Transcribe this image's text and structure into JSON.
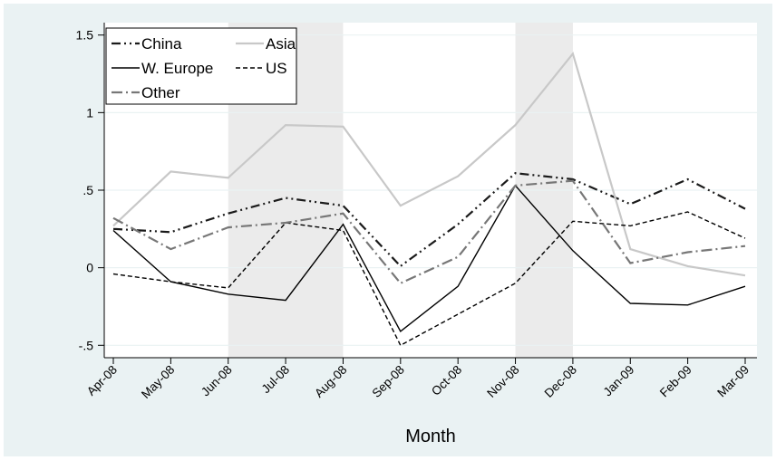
{
  "chart_data": {
    "type": "line",
    "xlabel": "Month",
    "ylabel": "",
    "categories": [
      "Apr-08",
      "May-08",
      "Jun-08",
      "Jul-08",
      "Aug-08",
      "Sep-08",
      "Oct-08",
      "Nov-08",
      "Dec-08",
      "Jan-09",
      "Feb-09",
      "Mar-09"
    ],
    "ylim": [
      -0.58,
      1.58
    ],
    "yticks": [
      -0.5,
      0,
      0.5,
      1,
      1.5
    ],
    "ytick_labels": [
      "-.5",
      "0",
      ".5",
      "1",
      "1.5"
    ],
    "grid": true,
    "legend_position": "top-left",
    "shaded_periods": [
      [
        "Jun-08",
        "Aug-08"
      ],
      [
        "Nov-08",
        "Dec-08"
      ]
    ],
    "colors": {
      "plot_background": "#ffffff",
      "outer_background": "#eaf2f3",
      "shade": "#ebebeb",
      "grid": "#eaf2f3"
    },
    "series": [
      {
        "name": "China",
        "color": "#1a1a1a",
        "dash": "10,4,2,4,2,4",
        "width": 2.2,
        "values": [
          0.25,
          0.23,
          0.35,
          0.45,
          0.4,
          0.01,
          0.28,
          0.61,
          0.57,
          0.41,
          0.57,
          0.38
        ]
      },
      {
        "name": "Asia",
        "color": "#c8c8c8",
        "dash": "",
        "width": 2.2,
        "values": [
          0.27,
          0.62,
          0.58,
          0.92,
          0.91,
          0.4,
          0.59,
          0.92,
          1.38,
          0.12,
          0.01,
          -0.05
        ]
      },
      {
        "name": "W. Europe",
        "color": "#000000",
        "dash": "",
        "width": 1.4,
        "values": [
          0.24,
          -0.09,
          -0.17,
          -0.21,
          0.28,
          -0.41,
          -0.12,
          0.53,
          0.11,
          -0.23,
          -0.24,
          -0.12
        ]
      },
      {
        "name": "US",
        "color": "#000000",
        "dash": "5,3",
        "width": 1.4,
        "values": [
          -0.04,
          -0.09,
          -0.13,
          0.29,
          0.24,
          -0.5,
          -0.3,
          -0.1,
          0.3,
          0.27,
          0.36,
          0.19
        ]
      },
      {
        "name": "Other",
        "color": "#777777",
        "dash": "12,4,2,4",
        "width": 2.2,
        "values": [
          0.32,
          0.12,
          0.26,
          0.29,
          0.35,
          -0.1,
          0.07,
          0.53,
          0.56,
          0.03,
          0.1,
          0.14
        ]
      }
    ]
  }
}
